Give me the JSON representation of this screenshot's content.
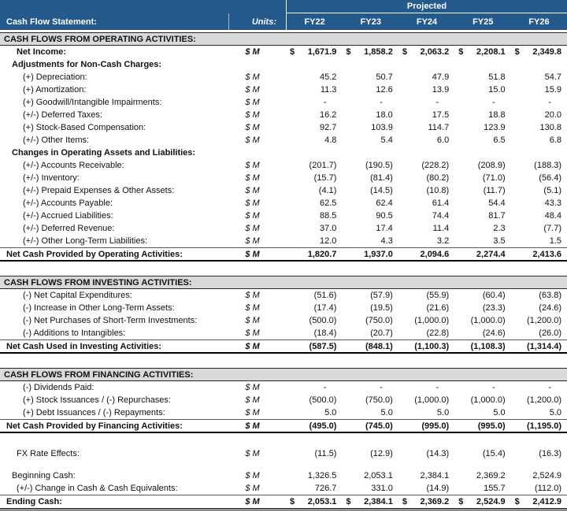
{
  "header": {
    "title": "Cash Flow Statement:",
    "units_label": "Units:",
    "projected_label": "Projected",
    "columns": [
      "FY22",
      "FY23",
      "FY24",
      "FY25",
      "FY26"
    ]
  },
  "units_value": "$ M",
  "colors": {
    "header_blue": "#24598B",
    "section_gray": "#D9D9D9",
    "text": "#111111"
  },
  "rows": [
    {
      "type": "section",
      "label": "CASH FLOWS FROM OPERATING ACTIVITIES:"
    },
    {
      "type": "item",
      "indent": 2,
      "bold": true,
      "dollar": true,
      "units": true,
      "label": "Net Income:",
      "values": [
        "1,671.9",
        "1,858.2",
        "2,063.2",
        "2,208.1",
        "2,349.8"
      ]
    },
    {
      "type": "item",
      "indent": 1,
      "bold": true,
      "label": "Adjustments for Non-Cash Charges:"
    },
    {
      "type": "item",
      "indent": 3,
      "units": true,
      "label": "(+) Depreciation:",
      "values": [
        "45.2",
        "50.7",
        "47.9",
        "51.8",
        "54.7"
      ]
    },
    {
      "type": "item",
      "indent": 3,
      "units": true,
      "label": "(+) Amortization:",
      "values": [
        "11.3",
        "12.6",
        "13.9",
        "15.0",
        "15.9"
      ]
    },
    {
      "type": "item",
      "indent": 3,
      "units": true,
      "label": "(+) Goodwill/Intangible Impairments:",
      "values": [
        "-",
        "-",
        "-",
        "-",
        "-"
      ]
    },
    {
      "type": "item",
      "indent": 3,
      "units": true,
      "label": "(+/-) Deferred Taxes:",
      "values": [
        "16.2",
        "18.0",
        "17.5",
        "18.8",
        "20.0"
      ]
    },
    {
      "type": "item",
      "indent": 3,
      "units": true,
      "label": "(+) Stock-Based Compensation:",
      "values": [
        "92.7",
        "103.9",
        "114.7",
        "123.9",
        "130.8"
      ]
    },
    {
      "type": "item",
      "indent": 3,
      "units": true,
      "label": "(+/-) Other Items:",
      "values": [
        "4.8",
        "5.4",
        "6.0",
        "6.5",
        "6.8"
      ]
    },
    {
      "type": "item",
      "indent": 1,
      "bold": true,
      "label": "Changes in Operating Assets and Liabilities:"
    },
    {
      "type": "item",
      "indent": 3,
      "units": true,
      "label": "(+/-) Accounts Receivable:",
      "values": [
        "(201.7)",
        "(190.5)",
        "(228.2)",
        "(208.9)",
        "(188.3)"
      ]
    },
    {
      "type": "item",
      "indent": 3,
      "units": true,
      "label": "(+/-) Inventory:",
      "values": [
        "(15.7)",
        "(81.4)",
        "(80.2)",
        "(71.0)",
        "(56.4)"
      ]
    },
    {
      "type": "item",
      "indent": 3,
      "units": true,
      "label": "(+/-) Prepaid Expenses & Other Assets:",
      "values": [
        "(4.1)",
        "(14.5)",
        "(10.8)",
        "(11.7)",
        "(5.1)"
      ]
    },
    {
      "type": "item",
      "indent": 3,
      "units": true,
      "label": "(+/-) Accounts Payable:",
      "values": [
        "62.5",
        "62.4",
        "61.4",
        "54.4",
        "43.3"
      ]
    },
    {
      "type": "item",
      "indent": 3,
      "units": true,
      "label": "(+/-) Accrued Liabilities:",
      "values": [
        "88.5",
        "90.5",
        "74.4",
        "81.7",
        "48.4"
      ]
    },
    {
      "type": "item",
      "indent": 3,
      "units": true,
      "label": "(+/-) Deferred Revenue:",
      "values": [
        "37.0",
        "17.4",
        "11.4",
        "2.3",
        "(7.7)"
      ]
    },
    {
      "type": "item",
      "indent": 3,
      "units": true,
      "label": "(+/-) Other Long-Term Liabilities:",
      "values": [
        "12.0",
        "4.3",
        "3.2",
        "3.5",
        "1.5"
      ]
    },
    {
      "type": "total",
      "indent": 0,
      "units": true,
      "label": "Net Cash Provided by Operating Activities:",
      "values": [
        "1,820.7",
        "1,937.0",
        "2,094.6",
        "2,274.4",
        "2,413.6"
      ]
    },
    {
      "type": "blank"
    },
    {
      "type": "section",
      "label": "CASH FLOWS FROM INVESTING ACTIVITIES:"
    },
    {
      "type": "item",
      "indent": 3,
      "units": true,
      "label": "(-) Net Capital Expenditures:",
      "values": [
        "(51.6)",
        "(57.9)",
        "(55.9)",
        "(60.4)",
        "(63.8)"
      ]
    },
    {
      "type": "item",
      "indent": 3,
      "units": true,
      "label": "(-) Increase in Other Long-Term Assets:",
      "values": [
        "(17.4)",
        "(19.5)",
        "(21.6)",
        "(23.3)",
        "(24.6)"
      ]
    },
    {
      "type": "item",
      "indent": 3,
      "units": true,
      "label": "(-) Net Purchases of Short-Term Investments:",
      "values": [
        "(500.0)",
        "(750.0)",
        "(1,000.0)",
        "(1,000.0)",
        "(1,200.0)"
      ]
    },
    {
      "type": "item",
      "indent": 3,
      "units": true,
      "label": "(-) Additions to Intangibles:",
      "values": [
        "(18.4)",
        "(20.7)",
        "(22.8)",
        "(24.6)",
        "(26.0)"
      ]
    },
    {
      "type": "total",
      "indent": 0,
      "units": true,
      "label": "Net Cash Used in Investing Activities:",
      "values": [
        "(587.5)",
        "(848.1)",
        "(1,100.3)",
        "(1,108.3)",
        "(1,314.4)"
      ]
    },
    {
      "type": "blank"
    },
    {
      "type": "section",
      "label": "CASH FLOWS FROM FINANCING ACTIVITIES:"
    },
    {
      "type": "item",
      "indent": 3,
      "units": true,
      "label": "(-) Dividends Paid:",
      "values": [
        "-",
        "-",
        "-",
        "-",
        "-"
      ]
    },
    {
      "type": "item",
      "indent": 3,
      "units": true,
      "label": "(+) Stock Issuances / (-) Repurchases:",
      "values": [
        "(500.0)",
        "(750.0)",
        "(1,000.0)",
        "(1,000.0)",
        "(1,200.0)"
      ]
    },
    {
      "type": "item",
      "indent": 3,
      "units": true,
      "label": "(+) Debt Issuances / (-) Repayments:",
      "values": [
        "5.0",
        "5.0",
        "5.0",
        "5.0",
        "5.0"
      ]
    },
    {
      "type": "total",
      "indent": 0,
      "units": true,
      "label": "Net Cash Provided by Financing Activities:",
      "values": [
        "(495.0)",
        "(745.0)",
        "(995.0)",
        "(995.0)",
        "(1,195.0)"
      ]
    },
    {
      "type": "blank"
    },
    {
      "type": "item",
      "indent": 2,
      "units": true,
      "label": "FX Rate Effects:",
      "values": [
        "(11.5)",
        "(12.9)",
        "(14.3)",
        "(15.4)",
        "(16.3)"
      ]
    },
    {
      "type": "blank",
      "h": 12
    },
    {
      "type": "item",
      "indent": 1,
      "units": true,
      "label": "Beginning Cash:",
      "values": [
        "1,326.5",
        "2,053.1",
        "2,384.1",
        "2,369.2",
        "2,524.9"
      ]
    },
    {
      "type": "item",
      "indent": 2,
      "units": true,
      "label": "(+/-) Change in Cash & Cash Equivalents:",
      "values": [
        "726.7",
        "331.0",
        "(14.9)",
        "155.7",
        "(112.0)"
      ]
    },
    {
      "type": "grand",
      "indent": 0,
      "dollar": true,
      "units": true,
      "label": "Ending Cash:",
      "values": [
        "2,053.1",
        "2,384.1",
        "2,369.2",
        "2,524.9",
        "2,412.9"
      ]
    }
  ]
}
